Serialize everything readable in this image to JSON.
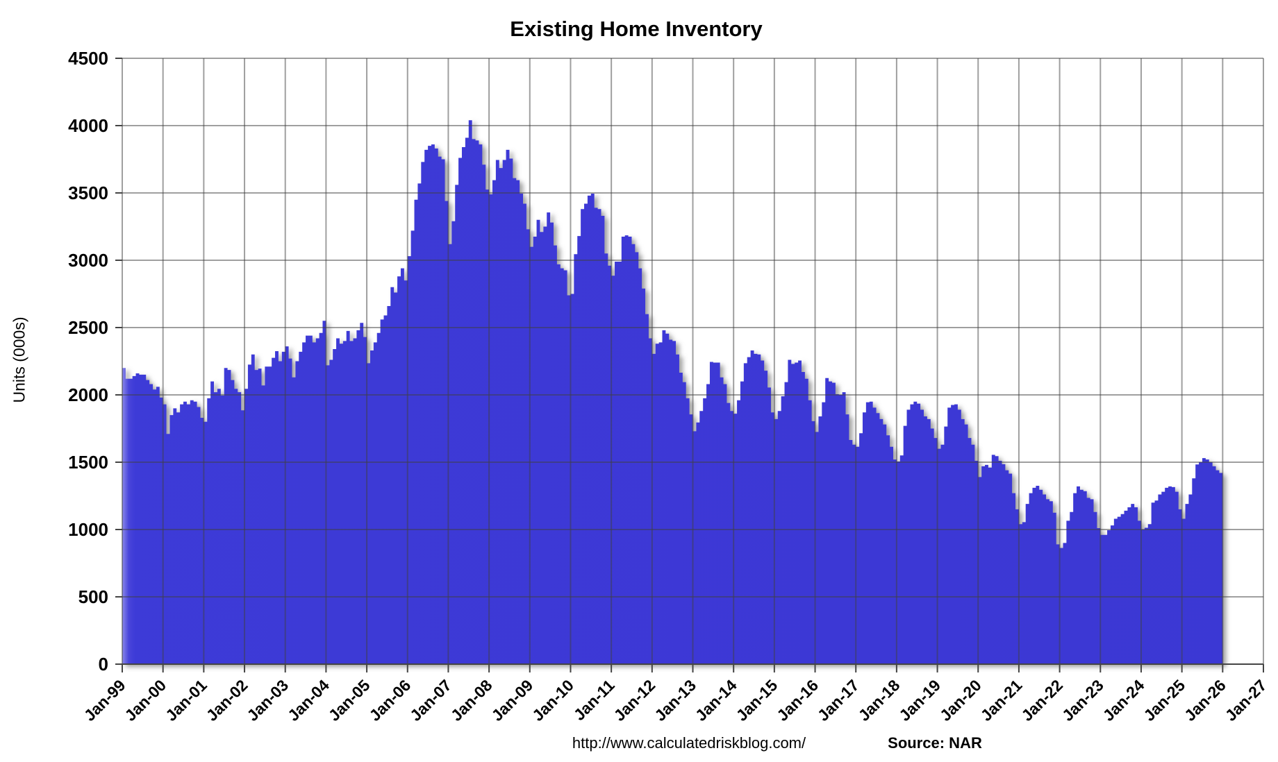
{
  "title": "Existing Home Inventory",
  "y_axis": {
    "label": "Units (000s)",
    "ticks": [
      "0",
      "500",
      "1000",
      "1500",
      "2000",
      "2500",
      "3000",
      "3500",
      "4000",
      "4500"
    ]
  },
  "x_axis": {
    "tick_labels": [
      "Jan-99",
      "Jan-00",
      "Jan-01",
      "Jan-02",
      "Jan-03",
      "Jan-04",
      "Jan-05",
      "Jan-06",
      "Jan-07",
      "Jan-08",
      "Jan-09",
      "Jan-10",
      "Jan-11",
      "Jan-12",
      "Jan-13",
      "Jan-14",
      "Jan-15",
      "Jan-16",
      "Jan-17",
      "Jan-18",
      "Jan-19",
      "Jan-20",
      "Jan-21",
      "Jan-22",
      "Jan-23",
      "Jan-24",
      "Jan-25",
      "Jan-26",
      "Jan-27"
    ]
  },
  "footer": {
    "url": "http://www.calculatedriskblog.com/",
    "source": "Source: NAR"
  },
  "colors": {
    "bar_fill": "#3d3ad7",
    "bar_fill_edge_highlight": "#8a88ea",
    "gridline": "rgba(64,64,64,0.50)",
    "axis_tick": "#444444",
    "text": "#000000",
    "background": "#ffffff"
  },
  "chart_data": {
    "type": "bar",
    "title": "Existing Home Inventory",
    "xlabel": "",
    "ylabel": "Units (000s)",
    "ylim": [
      0,
      4500
    ],
    "y_tick_step": 500,
    "grid": "both",
    "legend": "none",
    "x_start_month": "1999-01",
    "x_end_month": "2025-12",
    "x_axis_span_years": "Jan-99 to Jan-27",
    "series_name": "Existing home inventory, monthly (thousands of units)",
    "values_by_year": {
      "1999": [
        2200,
        2120,
        2120,
        2140,
        2160,
        2150,
        2150,
        2110,
        2080,
        2040,
        2060,
        1980
      ],
      "2000": [
        1930,
        1710,
        1850,
        1900,
        1870,
        1930,
        1950,
        1930,
        1960,
        1950,
        1910,
        1830
      ],
      "2001": [
        1800,
        1975,
        2100,
        2020,
        2045,
        1995,
        2200,
        2185,
        2110,
        2045,
        2020,
        1885
      ],
      "2002": [
        2045,
        2225,
        2300,
        2185,
        2195,
        2070,
        2210,
        2210,
        2275,
        2325,
        2250,
        2320
      ],
      "2003": [
        2360,
        2270,
        2130,
        2250,
        2320,
        2390,
        2440,
        2440,
        2390,
        2420,
        2460,
        2550
      ],
      "2004": [
        2220,
        2260,
        2340,
        2420,
        2380,
        2400,
        2475,
        2400,
        2420,
        2480,
        2535,
        2430
      ],
      "2005": [
        2235,
        2330,
        2390,
        2460,
        2560,
        2590,
        2660,
        2800,
        2760,
        2880,
        2940,
        2850
      ],
      "2006": [
        3030,
        3220,
        3450,
        3570,
        3730,
        3820,
        3850,
        3860,
        3830,
        3770,
        3750,
        3440
      ],
      "2007": [
        3120,
        3290,
        3560,
        3760,
        3840,
        3910,
        4040,
        3900,
        3890,
        3860,
        3710,
        3525
      ],
      "2008": [
        3490,
        3595,
        3745,
        3685,
        3745,
        3820,
        3755,
        3610,
        3595,
        3495,
        3420,
        3230
      ],
      "2009": [
        3100,
        3175,
        3300,
        3210,
        3250,
        3355,
        3280,
        3110,
        2970,
        2940,
        2925,
        2740
      ],
      "2010": [
        2750,
        3045,
        3180,
        3380,
        3420,
        3480,
        3495,
        3390,
        3380,
        3330,
        3050,
        2960
      ],
      "2011": [
        2885,
        2990,
        2990,
        3175,
        3185,
        3175,
        3120,
        3060,
        2940,
        2790,
        2600,
        2420
      ],
      "2012": [
        2305,
        2380,
        2390,
        2480,
        2455,
        2410,
        2400,
        2300,
        2165,
        2095,
        1975,
        1855
      ],
      "2013": [
        1730,
        1795,
        1880,
        1975,
        2080,
        2245,
        2240,
        2240,
        2130,
        2080,
        1940,
        1880
      ],
      "2014": [
        1860,
        1960,
        2100,
        2235,
        2280,
        2330,
        2305,
        2300,
        2255,
        2180,
        2055,
        1870
      ],
      "2015": [
        1820,
        1880,
        1990,
        2095,
        2260,
        2230,
        2240,
        2255,
        2170,
        2120,
        1960,
        1805
      ],
      "2016": [
        1725,
        1840,
        1945,
        2125,
        2100,
        2090,
        2005,
        2000,
        2020,
        1855,
        1665,
        1630
      ],
      "2017": [
        1615,
        1715,
        1870,
        1945,
        1950,
        1905,
        1865,
        1820,
        1780,
        1700,
        1615,
        1520
      ],
      "2018": [
        1505,
        1550,
        1770,
        1890,
        1930,
        1950,
        1935,
        1890,
        1840,
        1820,
        1750,
        1680
      ],
      "2019": [
        1600,
        1630,
        1765,
        1905,
        1925,
        1930,
        1890,
        1820,
        1780,
        1680,
        1630,
        1510
      ],
      "2020": [
        1390,
        1470,
        1480,
        1460,
        1555,
        1545,
        1510,
        1485,
        1440,
        1415,
        1270,
        1150
      ],
      "2021": [
        1040,
        1055,
        1190,
        1270,
        1310,
        1325,
        1295,
        1260,
        1225,
        1210,
        1125,
        890
      ],
      "2022": [
        863,
        900,
        1065,
        1130,
        1270,
        1320,
        1295,
        1285,
        1235,
        1225,
        1130,
        1010
      ],
      "2023": [
        960,
        960,
        995,
        1030,
        1080,
        1095,
        1115,
        1140,
        1165,
        1190,
        1165,
        1065
      ],
      "2024": [
        1000,
        1013,
        1040,
        1200,
        1215,
        1260,
        1280,
        1310,
        1320,
        1315,
        1280,
        1150
      ],
      "2025": [
        1080,
        1190,
        1260,
        1380,
        1483,
        1500,
        1530,
        1520,
        1500,
        1470,
        1440,
        1420
      ]
    }
  }
}
